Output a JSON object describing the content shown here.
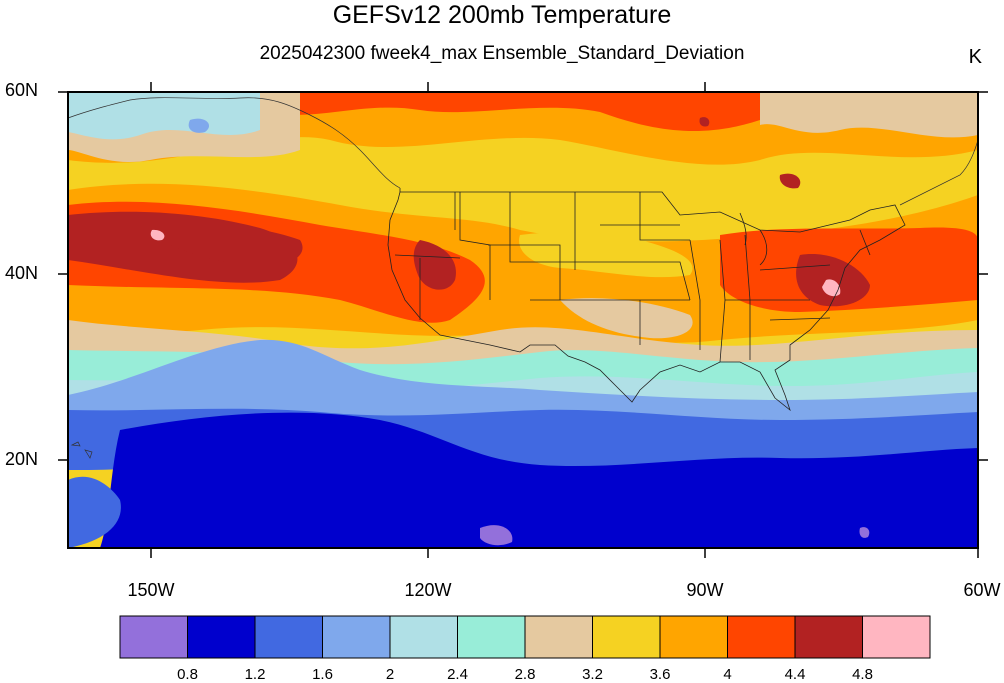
{
  "header": {
    "title": "GEFSv12 200mb Temperature",
    "subtitle": "2025042300 fweek4_max Ensemble_Standard_Deviation",
    "units": "K"
  },
  "map": {
    "region": "North Pacific and continental United States",
    "lat_labels": [
      "60N",
      "40N",
      "20N"
    ],
    "lon_labels": [
      "150W",
      "120W",
      "90W",
      "60W"
    ],
    "field": "Ensemble standard deviation of 200mb temperature",
    "features": [
      "coastlines",
      "US state boundaries",
      "Canada/Mexico borders"
    ],
    "notable_areas": [
      {
        "name": "North Pacific jet band",
        "level": "4.4-4.8"
      },
      {
        "name": "Mid-Atlantic / Chesapeake maximum",
        "level": "4.8+"
      },
      {
        "name": "Tropical Pacific minimum",
        "level": "0.8-1.2"
      }
    ]
  },
  "colorbar": {
    "colors": [
      "#9370db",
      "#0000cd",
      "#4169e1",
      "#7fa8ec",
      "#b0e0e6",
      "#98edd8",
      "#e5c9a0",
      "#f5d222",
      "#ffa500",
      "#ff4500",
      "#b22222",
      "#ffb6c1"
    ],
    "labels": [
      "0.8",
      "1.2",
      "1.6",
      "2",
      "2.4",
      "2.8",
      "3.2",
      "3.6",
      "4",
      "4.4",
      "4.8"
    ]
  }
}
